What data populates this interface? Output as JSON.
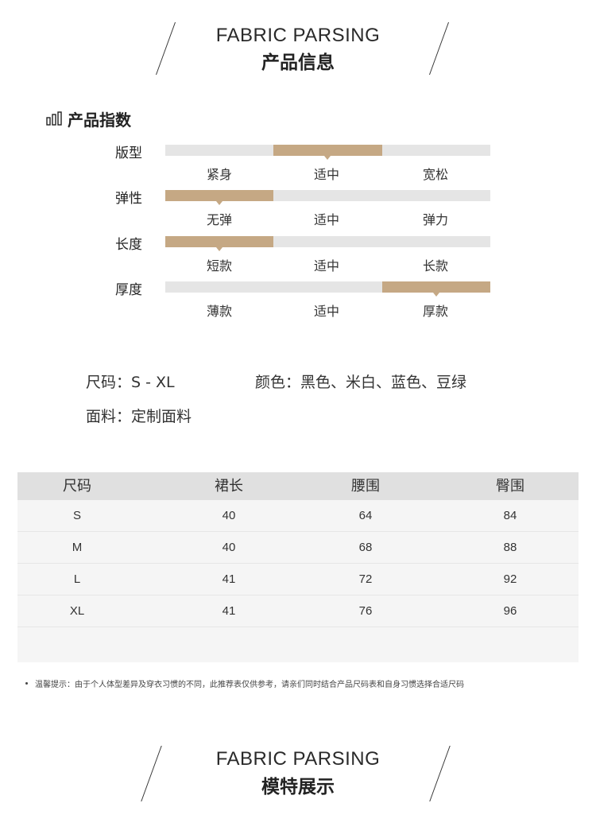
{
  "header_top": {
    "en": "FABRIC PARSING",
    "zh": "产品信息"
  },
  "index": {
    "title": "产品指数",
    "rows": [
      {
        "label": "版型",
        "options": [
          "紧身",
          "适中",
          "宽松"
        ],
        "selected": 1
      },
      {
        "label": "弹性",
        "options": [
          "无弹",
          "适中",
          "弹力"
        ],
        "selected": 0
      },
      {
        "label": "长度",
        "options": [
          "短款",
          "适中",
          "长款"
        ],
        "selected": 0
      },
      {
        "label": "厚度",
        "options": [
          "薄款",
          "适中",
          "厚款"
        ],
        "selected": 2
      }
    ]
  },
  "info": {
    "size": "尺码：S - XL",
    "color": "颜色：黑色、米白、蓝色、豆绿",
    "fabric": "面料：定制面料"
  },
  "size_table": {
    "headers": [
      "尺码",
      "裙长",
      "腰围",
      "臀围"
    ],
    "rows": [
      [
        "S",
        "40",
        "64",
        "84"
      ],
      [
        "M",
        "40",
        "68",
        "88"
      ],
      [
        "L",
        "41",
        "72",
        "92"
      ],
      [
        "XL",
        "41",
        "76",
        "96"
      ]
    ]
  },
  "tip": "温馨提示：由于个人体型差异及穿衣习惯的不同，此推荐表仅供参考，请亲们同时结合产品尺码表和自身习惯选择合适尺码",
  "header_bottom": {
    "en": "FABRIC PARSING",
    "zh": "模特展示"
  },
  "colors": {
    "accent": "#c5a884",
    "track": "#e5e5e5",
    "table_head": "#e0e0e0",
    "table_body": "#f5f5f5"
  }
}
